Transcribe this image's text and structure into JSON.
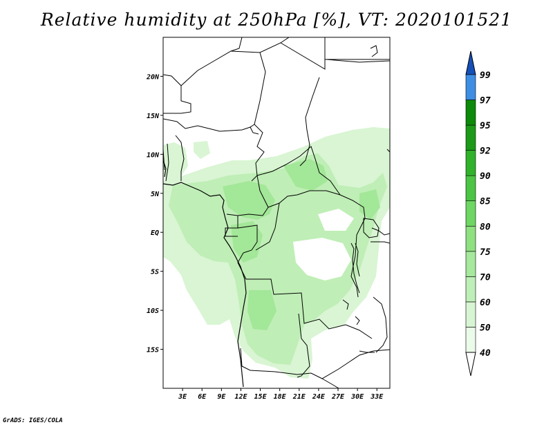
{
  "title": "Relative humidity at 250hPa [%], VT: 2020101521",
  "credit": "GrADS: IGES/COLA",
  "map": {
    "lon_range": [
      0,
      35
    ],
    "lat_range": [
      -20,
      25
    ],
    "lat_ticks": [
      {
        "value": 20,
        "label": "20N"
      },
      {
        "value": 15,
        "label": "15N"
      },
      {
        "value": 10,
        "label": "10N"
      },
      {
        "value": 5,
        "label": "5N"
      },
      {
        "value": 0,
        "label": "EQ"
      },
      {
        "value": -5,
        "label": "5S"
      },
      {
        "value": -10,
        "label": "10S"
      },
      {
        "value": -15,
        "label": "15S"
      }
    ],
    "lon_ticks": [
      {
        "value": 3,
        "label": "3E"
      },
      {
        "value": 6,
        "label": "6E"
      },
      {
        "value": 9,
        "label": "9E"
      },
      {
        "value": 12,
        "label": "12E"
      },
      {
        "value": 15,
        "label": "15E"
      },
      {
        "value": 18,
        "label": "18E"
      },
      {
        "value": 21,
        "label": "21E"
      },
      {
        "value": 24,
        "label": "24E"
      },
      {
        "value": 27,
        "label": "27E"
      },
      {
        "value": 30,
        "label": "30E"
      },
      {
        "value": 33,
        "label": "33E"
      }
    ]
  },
  "colorbar": {
    "levels": [
      {
        "label": "40",
        "color": "#ebfbe9"
      },
      {
        "label": "50",
        "color": "#d7f5d2"
      },
      {
        "label": "60",
        "color": "#bfefb8"
      },
      {
        "label": "70",
        "color": "#a6e89c"
      },
      {
        "label": "75",
        "color": "#8ee081"
      },
      {
        "label": "80",
        "color": "#6ed663"
      },
      {
        "label": "85",
        "color": "#4cc544"
      },
      {
        "label": "90",
        "color": "#30b22b"
      },
      {
        "label": "92",
        "color": "#1c9a18"
      },
      {
        "label": "95",
        "color": "#0d8a0a"
      },
      {
        "label": "97",
        "color": "#3e8ee4"
      },
      {
        "label": "99",
        "color": "#1c6cd0"
      }
    ],
    "top_color": "#1550b8"
  }
}
